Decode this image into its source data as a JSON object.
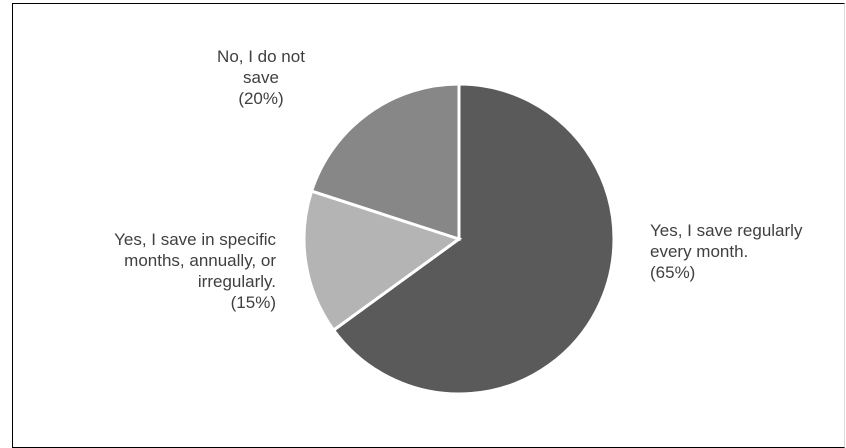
{
  "chart_data": {
    "type": "pie",
    "title": "",
    "slices": [
      {
        "label_lines": [
          "Yes, I save regularly",
          "every month.",
          "(65%)"
        ],
        "label": "Yes, I save regularly every month.",
        "value": 65,
        "color": "#5a5a5a"
      },
      {
        "label_lines": [
          "Yes, I save in specific",
          "months, annually, or",
          "irregularly.",
          "(15%)"
        ],
        "label": "Yes, I save in specific months, annually, or irregularly.",
        "value": 15,
        "color": "#b4b4b4"
      },
      {
        "label_lines": [
          "No, I do not",
          "save",
          "(20%)"
        ],
        "label": "No, I do not save",
        "value": 20,
        "color": "#878787"
      }
    ],
    "start_angle": "12 o'clock, clockwise",
    "legend": "none (inline labels)"
  }
}
